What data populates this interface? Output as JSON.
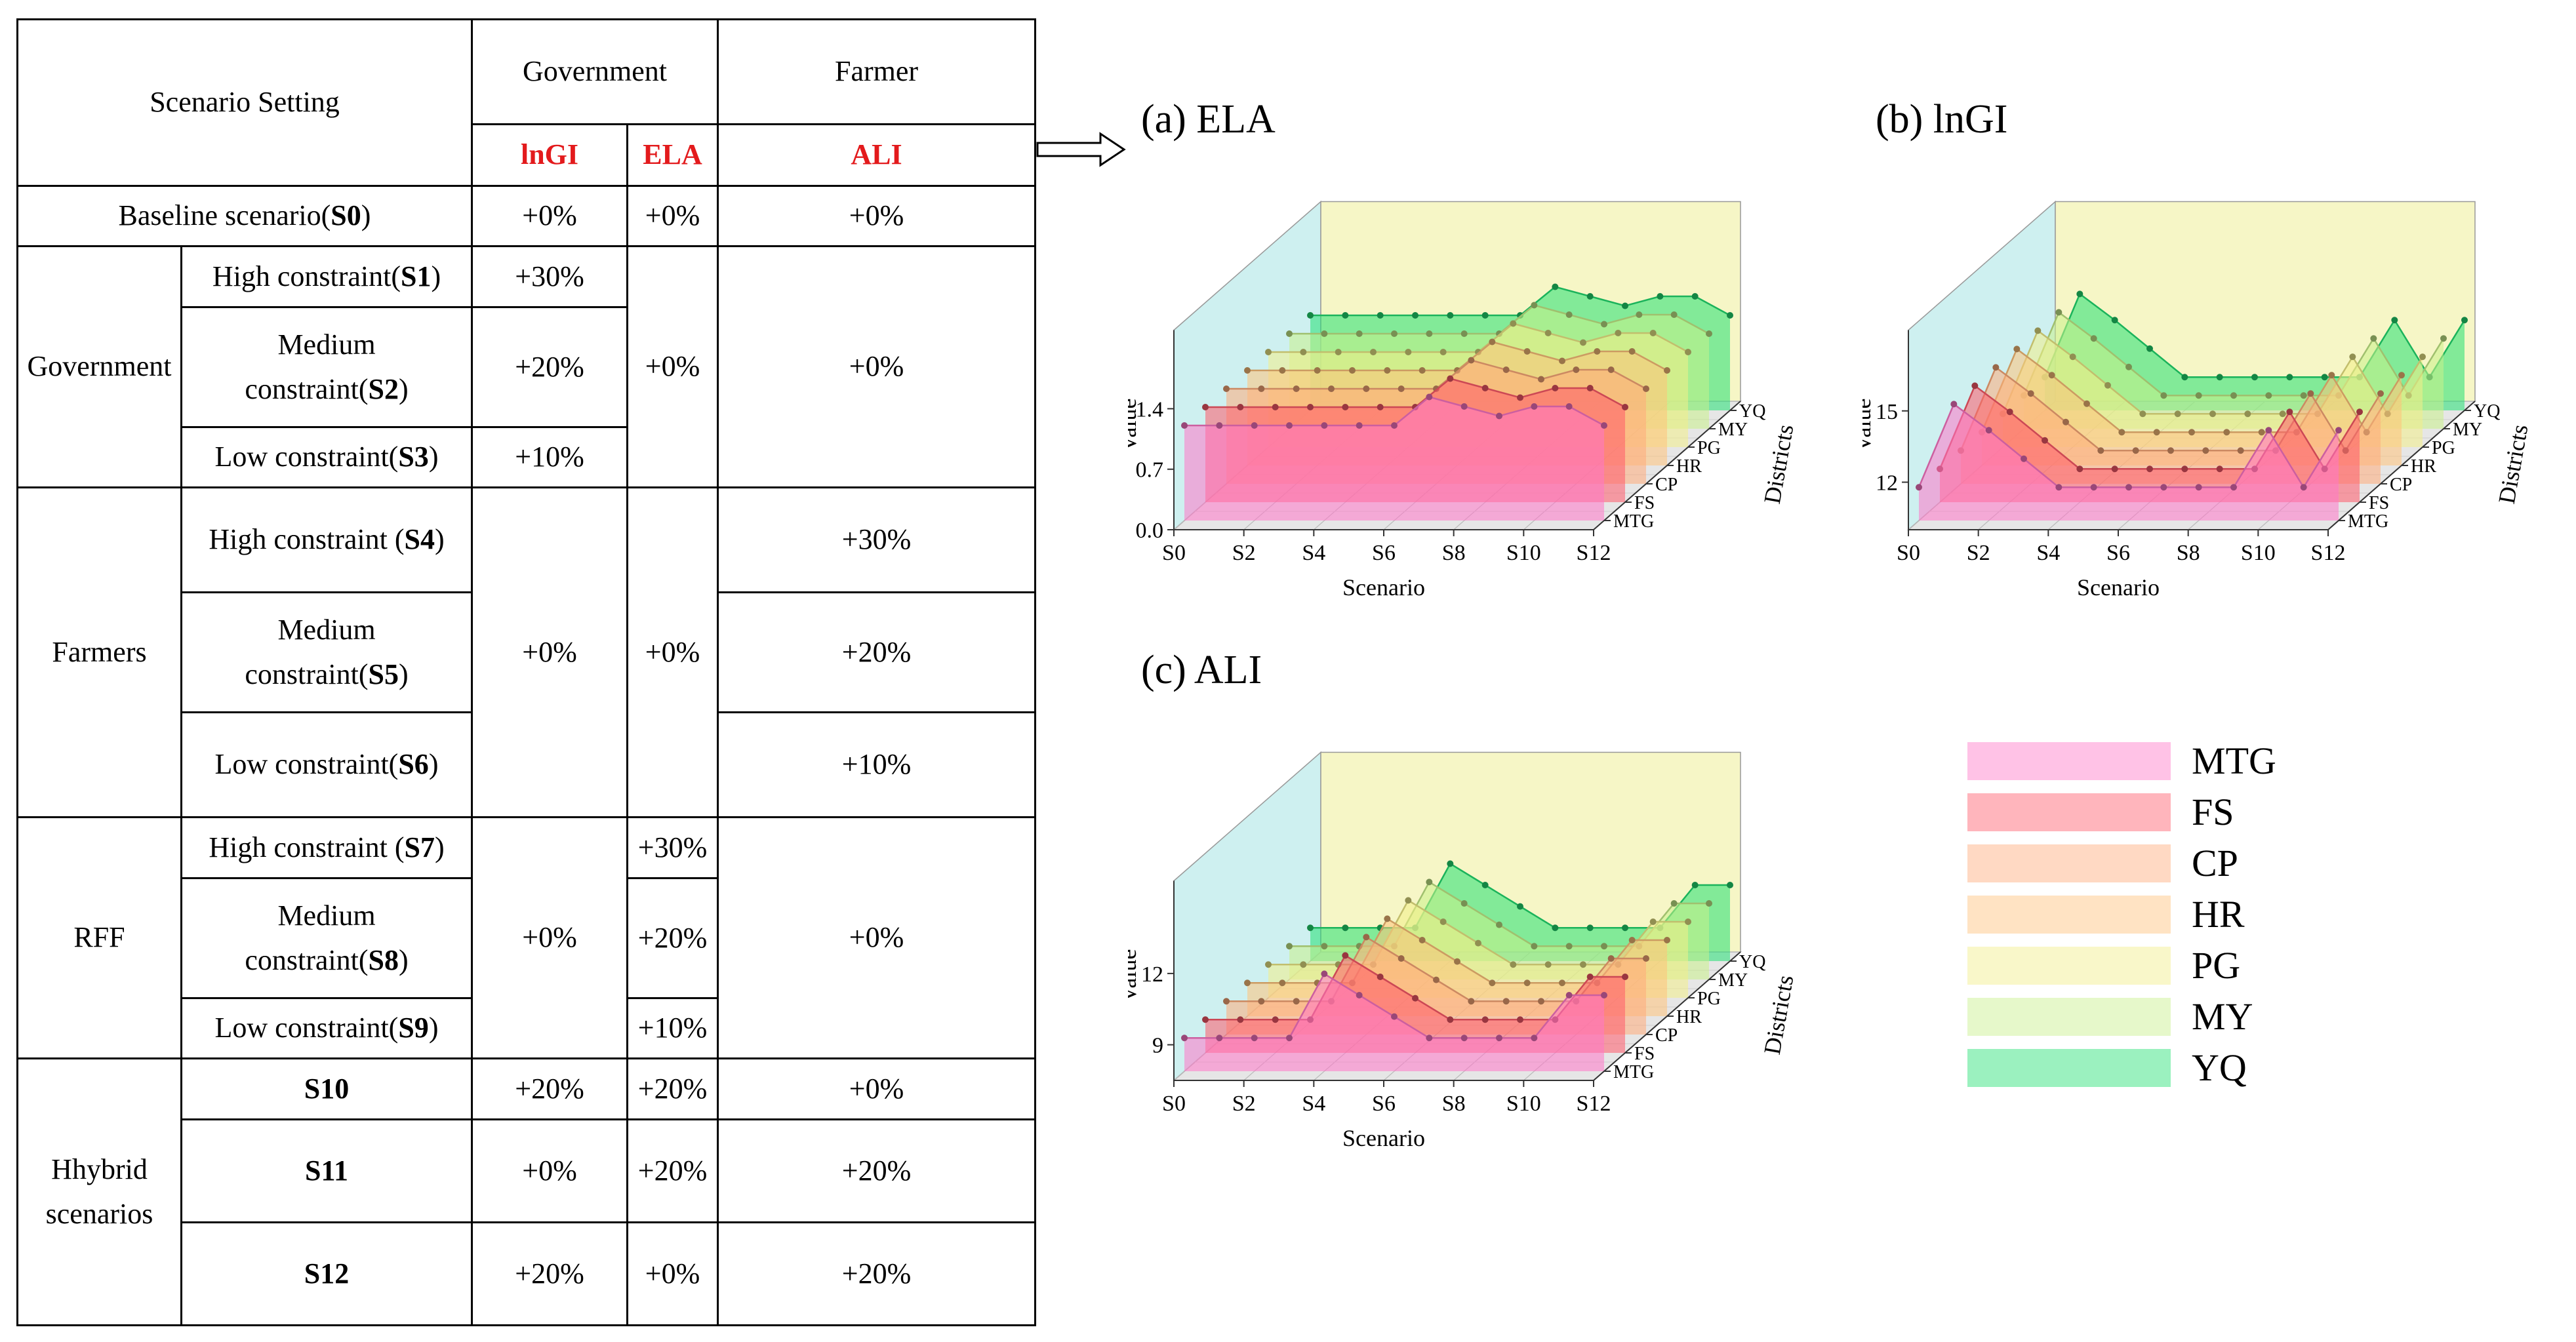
{
  "table": {
    "header": {
      "scenario_setting": "Scenario Setting",
      "government": "Government",
      "farmer": "Farmer",
      "lngi": "lnGI",
      "ela": "ELA",
      "ali": "ALI"
    },
    "rows": {
      "baseline": {
        "label_text": "Baseline scenario(",
        "label_code": "S0",
        "label_end": ")",
        "lngi": "+0%",
        "ela": "+0%",
        "ali": "+0%"
      },
      "government": {
        "group": "Government",
        "s1": {
          "text": "High constraint(",
          "code": "S1",
          "end": ")",
          "lngi": "+30%"
        },
        "s2": {
          "text1": "Medium",
          "text2": "constraint(",
          "code": "S2",
          "end": ")",
          "lngi": "+20%"
        },
        "s3": {
          "text": "Low constraint(",
          "code": "S3",
          "end": ")",
          "lngi": "+10%"
        },
        "ela": "+0%",
        "ali": "+0%"
      },
      "farmers": {
        "group": "Farmers",
        "s4": {
          "text": "High constraint (",
          "code": "S4",
          "end": ")",
          "ali": "+30%"
        },
        "s5": {
          "text1": "Medium",
          "text2": "constraint(",
          "code": "S5",
          "end": ")",
          "ali": "+20%"
        },
        "s6": {
          "text": "Low constraint(",
          "code": "S6",
          "end": ")",
          "ali": "+10%"
        },
        "lngi": "+0%",
        "ela": "+0%"
      },
      "rff": {
        "group": "RFF",
        "s7": {
          "text": "High constraint (",
          "code": "S7",
          "end": ")",
          "ela": "+30%"
        },
        "s8": {
          "text1": "Medium",
          "text2": "constraint(",
          "code": "S8",
          "end": ")",
          "ela": "+20%"
        },
        "s9": {
          "text": "Low constraint(",
          "code": "S9",
          "end": ")",
          "ela": "+10%"
        },
        "lngi": "+0%",
        "ali": "+0%"
      },
      "hybrid": {
        "group1": "Hhybrid",
        "group2": "scenarios",
        "s10": {
          "code": "S10",
          "lngi": "+20%",
          "ela": "+20%",
          "ali": "+0%"
        },
        "s11": {
          "code": "S11",
          "lngi": "+0%",
          "ela": "+20%",
          "ali": "+20%"
        },
        "s12": {
          "code": "S12",
          "lngi": "+20%",
          "ela": "+0%",
          "ali": "+20%"
        }
      }
    }
  },
  "chart_data": [
    {
      "type": "area",
      "id": "a",
      "title": "(a) ELA",
      "xlabel": "Scenario",
      "ylabel": "Value",
      "zlabel": "Districts",
      "x_ticks": [
        "S0",
        "S2",
        "S4",
        "S6",
        "S8",
        "S10",
        "S12"
      ],
      "y_ticks": [
        "0.0",
        "0.7",
        "1.4"
      ],
      "ylim": [
        0,
        2.2
      ],
      "categories": [
        "S0",
        "S1",
        "S2",
        "S3",
        "S4",
        "S5",
        "S6",
        "S7",
        "S8",
        "S9",
        "S10",
        "S11",
        "S12"
      ],
      "series": [
        {
          "name": "MTG",
          "values": [
            1.1,
            1.1,
            1.1,
            1.1,
            1.1,
            1.1,
            1.1,
            1.43,
            1.32,
            1.21,
            1.32,
            1.32,
            1.1
          ]
        },
        {
          "name": "FS",
          "values": [
            1.1,
            1.1,
            1.1,
            1.1,
            1.1,
            1.1,
            1.1,
            1.43,
            1.32,
            1.21,
            1.32,
            1.32,
            1.1
          ]
        },
        {
          "name": "CP",
          "values": [
            1.1,
            1.1,
            1.1,
            1.1,
            1.1,
            1.1,
            1.1,
            1.43,
            1.32,
            1.21,
            1.32,
            1.32,
            1.1
          ]
        },
        {
          "name": "HR",
          "values": [
            1.1,
            1.1,
            1.1,
            1.1,
            1.1,
            1.1,
            1.1,
            1.43,
            1.32,
            1.21,
            1.32,
            1.32,
            1.1
          ]
        },
        {
          "name": "PG",
          "values": [
            1.1,
            1.1,
            1.1,
            1.1,
            1.1,
            1.1,
            1.1,
            1.43,
            1.32,
            1.21,
            1.32,
            1.32,
            1.1
          ]
        },
        {
          "name": "MY",
          "values": [
            1.1,
            1.1,
            1.1,
            1.1,
            1.1,
            1.1,
            1.1,
            1.43,
            1.32,
            1.21,
            1.32,
            1.32,
            1.1
          ]
        },
        {
          "name": "YQ",
          "values": [
            1.1,
            1.1,
            1.1,
            1.1,
            1.1,
            1.1,
            1.1,
            1.43,
            1.32,
            1.21,
            1.32,
            1.32,
            1.1
          ]
        }
      ]
    },
    {
      "type": "area",
      "id": "b",
      "title": "(b) lnGI",
      "xlabel": "Scenario",
      "ylabel": "Value",
      "zlabel": "Districts",
      "x_ticks": [
        "S0",
        "S2",
        "S4",
        "S6",
        "S8",
        "S10",
        "S12"
      ],
      "y_ticks": [
        "12",
        "15"
      ],
      "ylim": [
        10,
        18
      ],
      "categories": [
        "S0",
        "S1",
        "S2",
        "S3",
        "S4",
        "S5",
        "S6",
        "S7",
        "S8",
        "S9",
        "S10",
        "S11",
        "S12"
      ],
      "series": [
        {
          "name": "MTG",
          "values": [
            11.4,
            14.9,
            13.8,
            12.6,
            11.4,
            11.4,
            11.4,
            11.4,
            11.4,
            11.4,
            13.8,
            11.4,
            13.8
          ]
        },
        {
          "name": "FS",
          "values": [
            11.4,
            14.9,
            13.8,
            12.6,
            11.4,
            11.4,
            11.4,
            11.4,
            11.4,
            11.4,
            13.8,
            11.4,
            13.8
          ]
        },
        {
          "name": "CP",
          "values": [
            11.4,
            14.9,
            13.8,
            12.6,
            11.4,
            11.4,
            11.4,
            11.4,
            11.4,
            11.4,
            13.8,
            11.4,
            13.8
          ]
        },
        {
          "name": "HR",
          "values": [
            11.4,
            14.9,
            13.8,
            12.6,
            11.4,
            11.4,
            11.4,
            11.4,
            11.4,
            11.4,
            13.8,
            11.4,
            13.8
          ]
        },
        {
          "name": "PG",
          "values": [
            11.4,
            14.9,
            13.8,
            12.6,
            11.4,
            11.4,
            11.4,
            11.4,
            11.4,
            11.4,
            13.8,
            11.4,
            13.8
          ]
        },
        {
          "name": "MY",
          "values": [
            11.4,
            14.9,
            13.8,
            12.6,
            11.4,
            11.4,
            11.4,
            11.4,
            11.4,
            11.4,
            13.8,
            11.4,
            13.8
          ]
        },
        {
          "name": "YQ",
          "values": [
            11.4,
            14.9,
            13.8,
            12.6,
            11.4,
            11.4,
            11.4,
            11.4,
            11.4,
            11.4,
            13.8,
            11.4,
            13.8
          ]
        }
      ]
    },
    {
      "type": "area",
      "id": "c",
      "title": "(c) ALI",
      "xlabel": "Scenario",
      "ylabel": "Value",
      "zlabel": "Districts",
      "x_ticks": [
        "S0",
        "S2",
        "S4",
        "S6",
        "S8",
        "S10",
        "S12"
      ],
      "y_ticks": [
        "9",
        "12"
      ],
      "ylim": [
        7.5,
        15.5
      ],
      "categories": [
        "S0",
        "S1",
        "S2",
        "S3",
        "S4",
        "S5",
        "S6",
        "S7",
        "S8",
        "S9",
        "S10",
        "S11",
        "S12"
      ],
      "series": [
        {
          "name": "MTG",
          "values": [
            8.9,
            8.9,
            8.9,
            8.9,
            11.6,
            10.7,
            9.8,
            8.9,
            8.9,
            8.9,
            8.9,
            10.7,
            10.7
          ]
        },
        {
          "name": "FS",
          "values": [
            8.9,
            8.9,
            8.9,
            8.9,
            11.6,
            10.7,
            9.8,
            8.9,
            8.9,
            8.9,
            8.9,
            10.7,
            10.7
          ]
        },
        {
          "name": "CP",
          "values": [
            8.9,
            8.9,
            8.9,
            8.9,
            11.6,
            10.7,
            9.8,
            8.9,
            8.9,
            8.9,
            8.9,
            10.7,
            10.7
          ]
        },
        {
          "name": "HR",
          "values": [
            8.9,
            8.9,
            8.9,
            8.9,
            11.6,
            10.7,
            9.8,
            8.9,
            8.9,
            8.9,
            8.9,
            10.7,
            10.7
          ]
        },
        {
          "name": "PG",
          "values": [
            8.9,
            8.9,
            8.9,
            8.9,
            11.6,
            10.7,
            9.8,
            8.9,
            8.9,
            8.9,
            8.9,
            10.7,
            10.7
          ]
        },
        {
          "name": "MY",
          "values": [
            8.9,
            8.9,
            8.9,
            8.9,
            11.6,
            10.7,
            9.8,
            8.9,
            8.9,
            8.9,
            8.9,
            10.7,
            10.7
          ]
        },
        {
          "name": "YQ",
          "values": [
            8.9,
            8.9,
            8.9,
            8.9,
            11.6,
            10.7,
            9.8,
            8.9,
            8.9,
            8.9,
            8.9,
            10.7,
            10.7
          ]
        }
      ]
    }
  ],
  "legend": {
    "items": [
      {
        "name": "MTG",
        "color": "#ff77c8"
      },
      {
        "name": "FS",
        "color": "#ff5a6a"
      },
      {
        "name": "CP",
        "color": "#ffab7a"
      },
      {
        "name": "HR",
        "color": "#ffc27a"
      },
      {
        "name": "PG",
        "color": "#f2ee88"
      },
      {
        "name": "MY",
        "color": "#c8f08a"
      },
      {
        "name": "YQ",
        "color": "#22e072"
      }
    ]
  },
  "colors": {
    "wall_left": "#c9eeee",
    "wall_back": "#f5f5c0",
    "floor": "#e6e6e6",
    "header_red": "#e31a1c"
  }
}
